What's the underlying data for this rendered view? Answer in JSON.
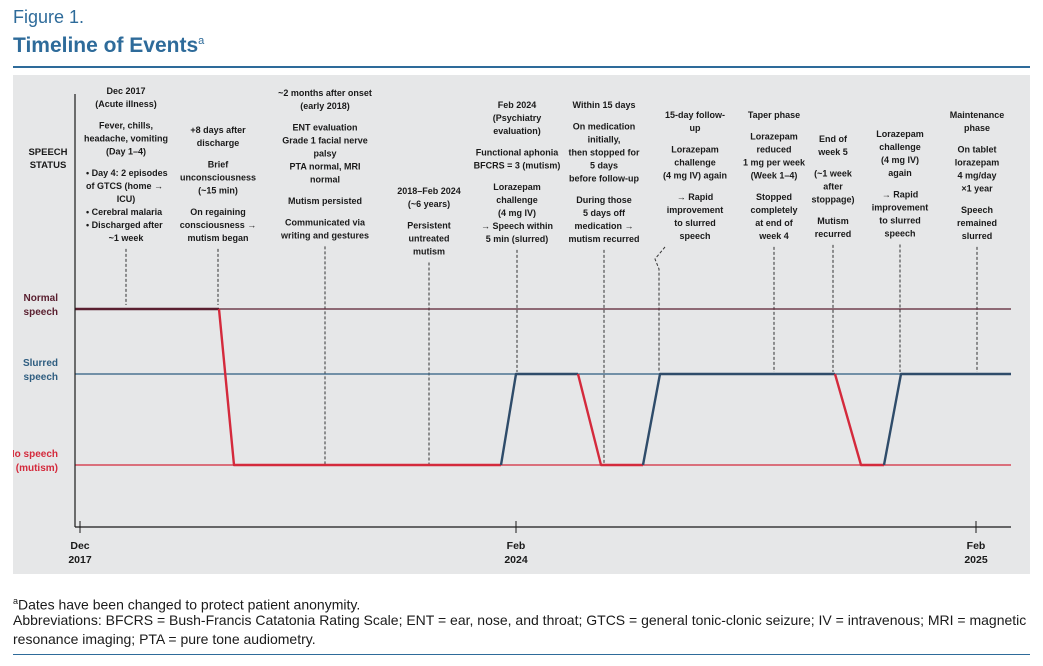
{
  "figure": {
    "label": "Figure 1.",
    "title": "Timeline of Events",
    "title_sup": "a"
  },
  "row_label": [
    "SPEECH",
    "STATUS"
  ],
  "status_levels": [
    {
      "key": "normal",
      "lines": [
        "Normal",
        "speech"
      ],
      "color": "#5a2030"
    },
    {
      "key": "slurred",
      "lines": [
        "Slurred",
        "speech"
      ],
      "color": "#2e5d80"
    },
    {
      "key": "none",
      "lines": [
        "No speech",
        "(mutism)"
      ],
      "color": "#d42a3c"
    }
  ],
  "annotations": [
    {
      "lines": [
        {
          "t": "Dec 2017",
          "b": true
        },
        {
          "t": "(Acute illness)",
          "b": true
        },
        {
          "t": ""
        },
        {
          "t": "Fever, chills,",
          "b": true
        },
        {
          "t": "headache, vomiting",
          "b": true
        },
        {
          "t": "(Day 1–4)",
          "b": true
        },
        {
          "t": ""
        },
        {
          "t": "• Day 4: 2 episodes",
          "b": true,
          "a": "start"
        },
        {
          "t": "  of GTCS (home →",
          "b": true,
          "a": "start"
        },
        {
          "t": "ICU)",
          "b": true
        },
        {
          "t": "• Cerebral malaria",
          "b": true,
          "a": "start"
        },
        {
          "t": "• Discharged after",
          "b": true,
          "a": "start"
        },
        {
          "t": "~1 week",
          "b": true
        }
      ]
    },
    {
      "lines": [
        {
          "t": "+8 days after",
          "b": true
        },
        {
          "t": "discharge",
          "b": true
        },
        {
          "t": ""
        },
        {
          "t": "Brief",
          "b": true
        },
        {
          "t": "unconsciousness",
          "b": true
        },
        {
          "t": "(~15 min)",
          "b": true
        },
        {
          "t": ""
        },
        {
          "t": "On regaining",
          "b": true
        },
        {
          "t": "consciousness →",
          "b": true
        },
        {
          "t": "mutism began",
          "b": true
        }
      ]
    },
    {
      "lines": [
        {
          "t": "~2 months after onset",
          "b": true
        },
        {
          "t": "(early 2018)",
          "b": true
        },
        {
          "t": ""
        },
        {
          "t": "ENT evaluation",
          "b": true
        },
        {
          "t": "Grade 1 facial nerve",
          "b": true
        },
        {
          "t": "palsy",
          "b": true
        },
        {
          "t": "PTA normal, MRI",
          "b": true
        },
        {
          "t": "normal",
          "b": true
        },
        {
          "t": ""
        },
        {
          "t": "Mutism persisted",
          "b": true
        },
        {
          "t": ""
        },
        {
          "t": "Communicated via",
          "b": true
        },
        {
          "t": "writing and gestures",
          "b": true
        }
      ]
    },
    {
      "lines": [
        {
          "t": "2018–Feb 2024",
          "b": true
        },
        {
          "t": "(~6 years)",
          "b": true
        },
        {
          "t": ""
        },
        {
          "t": "Persistent",
          "b": true
        },
        {
          "t": "untreated",
          "b": true
        },
        {
          "t": "mutism",
          "b": true
        }
      ]
    },
    {
      "lines": [
        {
          "t": "Feb 2024",
          "b": true
        },
        {
          "t": "(Psychiatry",
          "b": true
        },
        {
          "t": "evaluation)",
          "b": true
        },
        {
          "t": ""
        },
        {
          "t": "Functional aphonia",
          "b": true
        },
        {
          "t": "BFCRS = 3 (mutism)",
          "b": true
        },
        {
          "t": ""
        },
        {
          "t": "Lorazepam",
          "b": true
        },
        {
          "t": "challenge",
          "b": true
        },
        {
          "t": "(4 mg IV)",
          "b": true
        },
        {
          "t": "→ Speech within",
          "b": true
        },
        {
          "t": "5 min (slurred)",
          "b": true
        }
      ]
    },
    {
      "lines": [
        {
          "t": "Within 15 days",
          "b": true
        },
        {
          "t": ""
        },
        {
          "t": "On medication",
          "b": true
        },
        {
          "t": "initially,",
          "b": true
        },
        {
          "t": "then stopped for",
          "b": true
        },
        {
          "t": "5 days",
          "b": true
        },
        {
          "t": "before follow-up",
          "b": true
        },
        {
          "t": ""
        },
        {
          "t": "During those",
          "b": true
        },
        {
          "t": "5 days off",
          "b": true
        },
        {
          "t": "medication →",
          "b": true
        },
        {
          "t": "mutism recurred",
          "b": true
        }
      ]
    },
    {
      "lines": [
        {
          "t": "15-day follow-",
          "b": true
        },
        {
          "t": "up",
          "b": true
        },
        {
          "t": ""
        },
        {
          "t": "Lorazepam",
          "b": true
        },
        {
          "t": "challenge",
          "b": true
        },
        {
          "t": "(4 mg IV) again",
          "b": true
        },
        {
          "t": ""
        },
        {
          "t": "→ Rapid",
          "b": true
        },
        {
          "t": "improvement",
          "b": true
        },
        {
          "t": "to slurred",
          "b": true
        },
        {
          "t": "speech",
          "b": true
        }
      ]
    },
    {
      "lines": [
        {
          "t": "Taper phase",
          "b": true
        },
        {
          "t": ""
        },
        {
          "t": "Lorazepam",
          "b": true
        },
        {
          "t": "reduced",
          "b": true
        },
        {
          "t": "1 mg per week",
          "b": true
        },
        {
          "t": "(Week 1–4)",
          "b": true
        },
        {
          "t": ""
        },
        {
          "t": "Stopped",
          "b": true
        },
        {
          "t": "completely",
          "b": true
        },
        {
          "t": "at end of",
          "b": true
        },
        {
          "t": "week 4",
          "b": true
        }
      ]
    },
    {
      "lines": [
        {
          "t": "End of",
          "b": true
        },
        {
          "t": "week 5",
          "b": true
        },
        {
          "t": ""
        },
        {
          "t": "(~1 week",
          "b": true
        },
        {
          "t": "after",
          "b": true
        },
        {
          "t": "stoppage)",
          "b": true
        },
        {
          "t": ""
        },
        {
          "t": "Mutism",
          "b": true
        },
        {
          "t": "recurred",
          "b": true
        }
      ]
    },
    {
      "lines": [
        {
          "t": "Lorazepam",
          "b": true
        },
        {
          "t": "challenge",
          "b": true
        },
        {
          "t": "(4 mg IV)",
          "b": true
        },
        {
          "t": "again",
          "b": true
        },
        {
          "t": ""
        },
        {
          "t": "→ Rapid",
          "b": true
        },
        {
          "t": "improvement",
          "b": true
        },
        {
          "t": "to slurred",
          "b": true
        },
        {
          "t": "speech",
          "b": true
        }
      ]
    },
    {
      "lines": [
        {
          "t": "Maintenance",
          "b": true
        },
        {
          "t": "phase",
          "b": true
        },
        {
          "t": ""
        },
        {
          "t": "On tablet",
          "b": true
        },
        {
          "t": "lorazepam",
          "b": true
        },
        {
          "t": "4 mg/day",
          "b": true
        },
        {
          "t": "×1 year",
          "b": true
        },
        {
          "t": ""
        },
        {
          "t": "Speech",
          "b": true
        },
        {
          "t": "remained",
          "b": true
        },
        {
          "t": "slurred",
          "b": true
        }
      ]
    }
  ],
  "axis_ticks": [
    {
      "lines": [
        "Dec",
        "2017"
      ]
    },
    {
      "lines": [
        "Feb",
        "2024"
      ]
    },
    {
      "lines": [
        "Feb",
        "2025"
      ]
    }
  ],
  "footnotes": {
    "note_sup": "a",
    "note": "Dates have been changed to protect patient anonymity.",
    "abbreviations": "Abbreviations: BFCRS = Bush-Francis Catatonia Rating Scale; ENT = ear, nose, and throat; GTCS = general tonic-clonic seizure; IV = intravenous; MRI = magnetic resonance imaging; PTA = pure tone audiometry."
  },
  "colors": {
    "accent": "#2e6b9a",
    "panel_bg": "#e6e7e8",
    "normal_line": "#5a2030",
    "slurred_line": "#2e5d80",
    "mutism_line": "#d42a3c",
    "trace_blue": "#2f4c6a"
  }
}
